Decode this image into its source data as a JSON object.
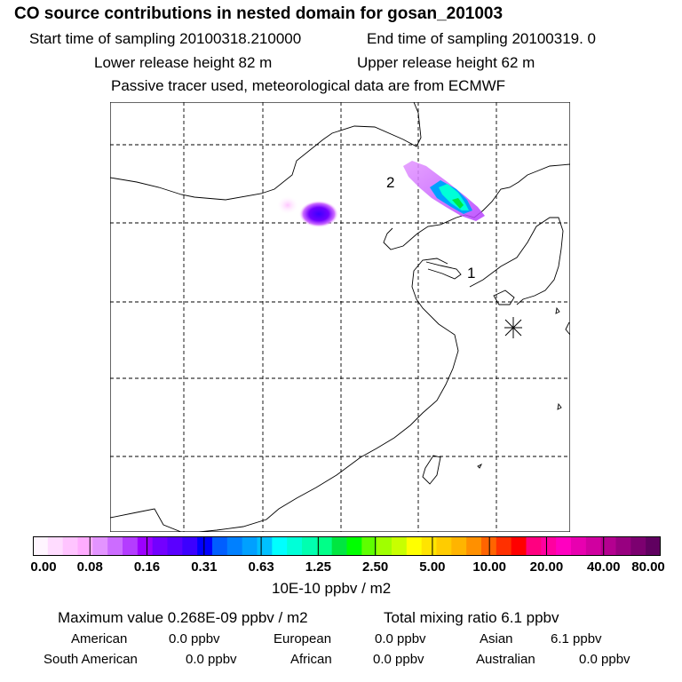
{
  "header": {
    "title": "CO  source contributions in nested domain for gosan_201003",
    "start_time": "Start time of sampling 20100318.210000",
    "end_time": "End time of sampling 20100319.     0",
    "lower_release": "Lower release height   82 m",
    "upper_release": "Upper release height   62 m",
    "tracer_note": "Passive tracer used, meteorological data are from ECMWF"
  },
  "map": {
    "labels": [
      "1",
      "2"
    ],
    "station_marker": "asterisk-icon"
  },
  "colorbar": {
    "colors": [
      "#fff5ff",
      "#ffdcff",
      "#ffc4ff",
      "#ffacff",
      "#e394ff",
      "#cc6cff",
      "#b43cff",
      "#9c00ff",
      "#7300ff",
      "#5a00ff",
      "#3c00ff",
      "#0000ff",
      "#005eff",
      "#0080ff",
      "#00a0ff",
      "#00c0ff",
      "#00ffff",
      "#00ffd8",
      "#00ffb0",
      "#00ff88",
      "#00e640",
      "#00ff00",
      "#5eff00",
      "#a0ff00",
      "#c8ff00",
      "#ffff00",
      "#ffe400",
      "#ffcc00",
      "#ffb400",
      "#ff9000",
      "#ff6400",
      "#ff3000",
      "#ff0000",
      "#ff0080",
      "#ff00a0",
      "#ff00c0",
      "#e800b0",
      "#d000a0",
      "#b40090",
      "#980080",
      "#7c0070",
      "#600060"
    ],
    "tick_labels": [
      "0.00",
      "0.08",
      "0.16",
      "0.31",
      "0.63",
      "1.25",
      "2.50",
      "5.00",
      "10.00",
      "20.00",
      "40.00",
      "80.00"
    ],
    "units": "10E-10 ppbv / m2"
  },
  "footer": {
    "max_value": "Maximum value  0.268E-09 ppbv / m2",
    "total_mixing": "Total mixing ratio       6.1 ppbv",
    "regions": [
      {
        "name": "American",
        "value": "0.0 ppbv"
      },
      {
        "name": "European",
        "value": "0.0 ppbv"
      },
      {
        "name": "Asian",
        "value": "6.1 ppbv"
      },
      {
        "name": "South American",
        "value": "0.0 ppbv"
      },
      {
        "name": "African",
        "value": "0.0 ppbv"
      },
      {
        "name": "Australian",
        "value": "0.0 ppbv"
      }
    ]
  }
}
